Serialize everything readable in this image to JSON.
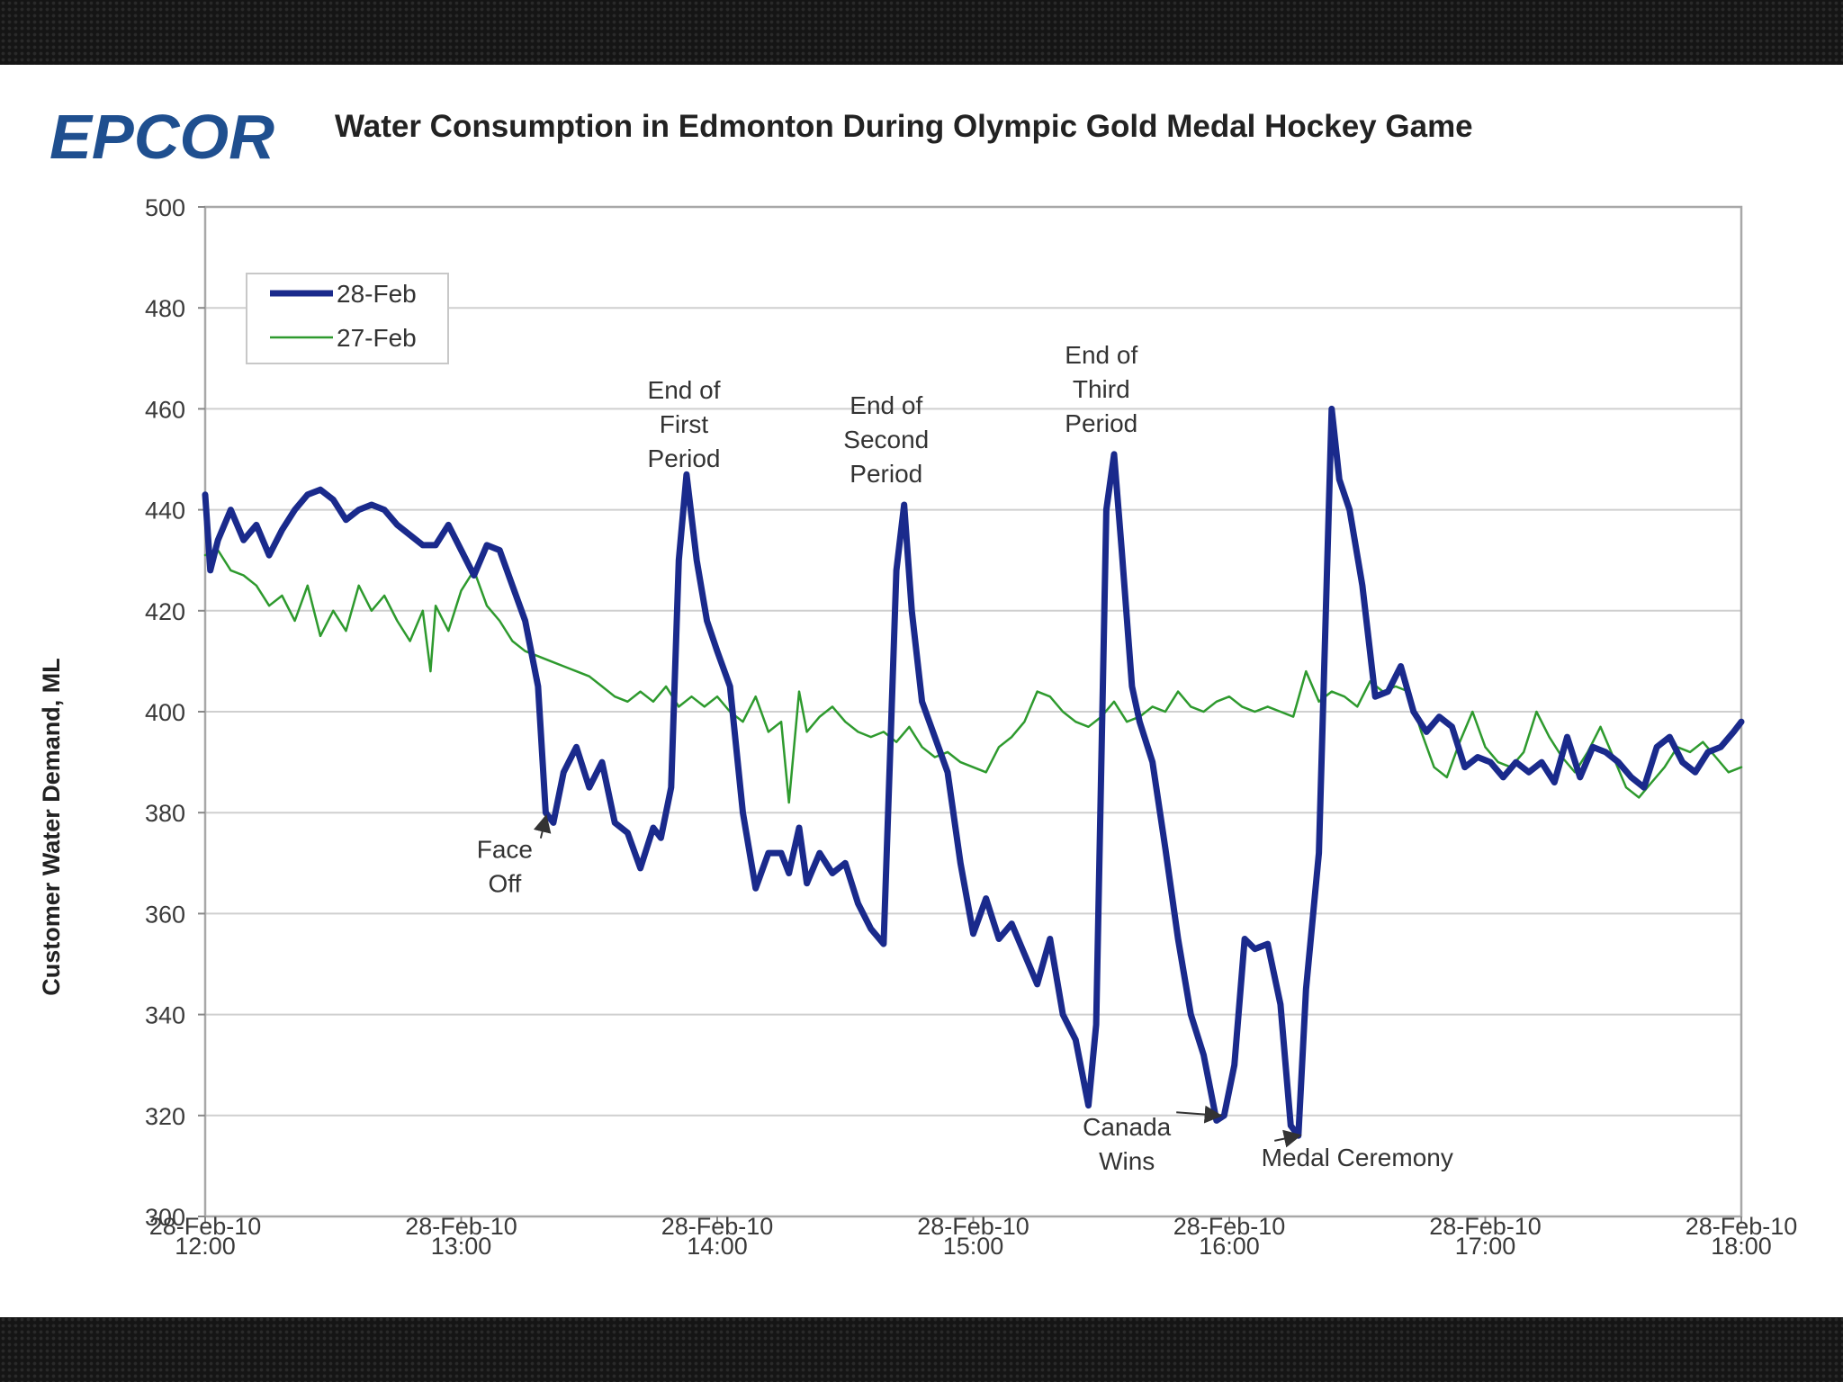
{
  "logo": {
    "text": "EPCOR"
  },
  "chart_data": {
    "type": "line",
    "title": "Water Consumption in Edmonton During Olympic Gold Medal Hockey Game",
    "xlabel": "",
    "ylabel": "Customer Water Demand, ML",
    "x_unit": "hours since 28-Feb-10 12:00",
    "xlim": [
      0,
      6
    ],
    "ylim": [
      300,
      500
    ],
    "yticks": [
      300,
      320,
      340,
      360,
      380,
      400,
      420,
      440,
      460,
      480,
      500
    ],
    "xticks": [
      {
        "x": 0,
        "line1": "28-Feb-10",
        "line2": "12:00"
      },
      {
        "x": 1,
        "line1": "28-Feb-10",
        "line2": "13:00"
      },
      {
        "x": 2,
        "line1": "28-Feb-10",
        "line2": "14:00"
      },
      {
        "x": 3,
        "line1": "28-Feb-10",
        "line2": "15:00"
      },
      {
        "x": 4,
        "line1": "28-Feb-10",
        "line2": "16:00"
      },
      {
        "x": 5,
        "line1": "28-Feb-10",
        "line2": "17:00"
      },
      {
        "x": 6,
        "line1": "28-Feb-10",
        "line2": "18:00"
      }
    ],
    "grid": true,
    "legend_position": "top-left",
    "series": [
      {
        "name": "28-Feb",
        "color": "#1a2a8c",
        "points": [
          [
            0,
            443
          ],
          [
            0.02,
            428
          ],
          [
            0.05,
            434
          ],
          [
            0.1,
            440
          ],
          [
            0.15,
            434
          ],
          [
            0.2,
            437
          ],
          [
            0.25,
            431
          ],
          [
            0.3,
            436
          ],
          [
            0.35,
            440
          ],
          [
            0.4,
            443
          ],
          [
            0.45,
            444
          ],
          [
            0.5,
            442
          ],
          [
            0.55,
            438
          ],
          [
            0.6,
            440
          ],
          [
            0.65,
            441
          ],
          [
            0.7,
            440
          ],
          [
            0.75,
            437
          ],
          [
            0.8,
            435
          ],
          [
            0.85,
            433
          ],
          [
            0.9,
            433
          ],
          [
            0.95,
            437
          ],
          [
            1.0,
            432
          ],
          [
            1.05,
            427
          ],
          [
            1.1,
            433
          ],
          [
            1.15,
            432
          ],
          [
            1.2,
            425
          ],
          [
            1.25,
            418
          ],
          [
            1.3,
            405
          ],
          [
            1.33,
            380
          ],
          [
            1.36,
            378
          ],
          [
            1.4,
            388
          ],
          [
            1.45,
            393
          ],
          [
            1.5,
            385
          ],
          [
            1.55,
            390
          ],
          [
            1.6,
            378
          ],
          [
            1.65,
            376
          ],
          [
            1.7,
            369
          ],
          [
            1.75,
            377
          ],
          [
            1.78,
            375
          ],
          [
            1.82,
            385
          ],
          [
            1.85,
            430
          ],
          [
            1.88,
            447
          ],
          [
            1.92,
            430
          ],
          [
            1.96,
            418
          ],
          [
            2.0,
            412
          ],
          [
            2.05,
            405
          ],
          [
            2.1,
            380
          ],
          [
            2.15,
            365
          ],
          [
            2.2,
            372
          ],
          [
            2.25,
            372
          ],
          [
            2.28,
            368
          ],
          [
            2.32,
            377
          ],
          [
            2.35,
            366
          ],
          [
            2.4,
            372
          ],
          [
            2.45,
            368
          ],
          [
            2.5,
            370
          ],
          [
            2.55,
            362
          ],
          [
            2.6,
            357
          ],
          [
            2.65,
            354
          ],
          [
            2.7,
            428
          ],
          [
            2.73,
            441
          ],
          [
            2.76,
            420
          ],
          [
            2.8,
            402
          ],
          [
            2.85,
            395
          ],
          [
            2.9,
            388
          ],
          [
            2.95,
            370
          ],
          [
            3.0,
            356
          ],
          [
            3.05,
            363
          ],
          [
            3.1,
            355
          ],
          [
            3.15,
            358
          ],
          [
            3.2,
            352
          ],
          [
            3.25,
            346
          ],
          [
            3.3,
            355
          ],
          [
            3.35,
            340
          ],
          [
            3.4,
            335
          ],
          [
            3.45,
            322
          ],
          [
            3.48,
            338
          ],
          [
            3.52,
            440
          ],
          [
            3.55,
            451
          ],
          [
            3.58,
            432
          ],
          [
            3.62,
            405
          ],
          [
            3.65,
            398
          ],
          [
            3.7,
            390
          ],
          [
            3.75,
            373
          ],
          [
            3.8,
            355
          ],
          [
            3.85,
            340
          ],
          [
            3.9,
            332
          ],
          [
            3.95,
            319
          ],
          [
            3.98,
            320
          ],
          [
            4.02,
            330
          ],
          [
            4.06,
            355
          ],
          [
            4.1,
            353
          ],
          [
            4.15,
            354
          ],
          [
            4.2,
            342
          ],
          [
            4.24,
            318
          ],
          [
            4.27,
            316
          ],
          [
            4.3,
            345
          ],
          [
            4.35,
            372
          ],
          [
            4.4,
            460
          ],
          [
            4.43,
            446
          ],
          [
            4.47,
            440
          ],
          [
            4.52,
            425
          ],
          [
            4.57,
            403
          ],
          [
            4.62,
            404
          ],
          [
            4.67,
            409
          ],
          [
            4.72,
            400
          ],
          [
            4.77,
            396
          ],
          [
            4.82,
            399
          ],
          [
            4.87,
            397
          ],
          [
            4.92,
            389
          ],
          [
            4.97,
            391
          ],
          [
            5.02,
            390
          ],
          [
            5.07,
            387
          ],
          [
            5.12,
            390
          ],
          [
            5.17,
            388
          ],
          [
            5.22,
            390
          ],
          [
            5.27,
            386
          ],
          [
            5.32,
            395
          ],
          [
            5.37,
            387
          ],
          [
            5.42,
            393
          ],
          [
            5.47,
            392
          ],
          [
            5.52,
            390
          ],
          [
            5.57,
            387
          ],
          [
            5.62,
            385
          ],
          [
            5.67,
            393
          ],
          [
            5.72,
            395
          ],
          [
            5.77,
            390
          ],
          [
            5.82,
            388
          ],
          [
            5.87,
            392
          ],
          [
            5.92,
            393
          ],
          [
            5.97,
            396
          ],
          [
            6.0,
            398
          ]
        ]
      },
      {
        "name": "27-Feb",
        "color": "#2e9a2e",
        "points": [
          [
            0,
            431
          ],
          [
            0.05,
            432
          ],
          [
            0.1,
            428
          ],
          [
            0.15,
            427
          ],
          [
            0.2,
            425
          ],
          [
            0.25,
            421
          ],
          [
            0.3,
            423
          ],
          [
            0.35,
            418
          ],
          [
            0.4,
            425
          ],
          [
            0.45,
            415
          ],
          [
            0.5,
            420
          ],
          [
            0.55,
            416
          ],
          [
            0.6,
            425
          ],
          [
            0.65,
            420
          ],
          [
            0.7,
            423
          ],
          [
            0.75,
            418
          ],
          [
            0.8,
            414
          ],
          [
            0.85,
            420
          ],
          [
            0.88,
            408
          ],
          [
            0.9,
            421
          ],
          [
            0.95,
            416
          ],
          [
            1.0,
            424
          ],
          [
            1.05,
            428
          ],
          [
            1.1,
            421
          ],
          [
            1.15,
            418
          ],
          [
            1.2,
            414
          ],
          [
            1.25,
            412
          ],
          [
            1.3,
            411
          ],
          [
            1.35,
            410
          ],
          [
            1.4,
            409
          ],
          [
            1.45,
            408
          ],
          [
            1.5,
            407
          ],
          [
            1.55,
            405
          ],
          [
            1.6,
            403
          ],
          [
            1.65,
            402
          ],
          [
            1.7,
            404
          ],
          [
            1.75,
            402
          ],
          [
            1.8,
            405
          ],
          [
            1.85,
            401
          ],
          [
            1.9,
            403
          ],
          [
            1.95,
            401
          ],
          [
            2.0,
            403
          ],
          [
            2.05,
            400
          ],
          [
            2.1,
            398
          ],
          [
            2.15,
            403
          ],
          [
            2.2,
            396
          ],
          [
            2.25,
            398
          ],
          [
            2.28,
            382
          ],
          [
            2.32,
            404
          ],
          [
            2.35,
            396
          ],
          [
            2.4,
            399
          ],
          [
            2.45,
            401
          ],
          [
            2.5,
            398
          ],
          [
            2.55,
            396
          ],
          [
            2.6,
            395
          ],
          [
            2.65,
            396
          ],
          [
            2.7,
            394
          ],
          [
            2.75,
            397
          ],
          [
            2.8,
            393
          ],
          [
            2.85,
            391
          ],
          [
            2.9,
            392
          ],
          [
            2.95,
            390
          ],
          [
            3.0,
            389
          ],
          [
            3.05,
            388
          ],
          [
            3.1,
            393
          ],
          [
            3.15,
            395
          ],
          [
            3.2,
            398
          ],
          [
            3.25,
            404
          ],
          [
            3.3,
            403
          ],
          [
            3.35,
            400
          ],
          [
            3.4,
            398
          ],
          [
            3.45,
            397
          ],
          [
            3.5,
            399
          ],
          [
            3.55,
            402
          ],
          [
            3.6,
            398
          ],
          [
            3.65,
            399
          ],
          [
            3.7,
            401
          ],
          [
            3.75,
            400
          ],
          [
            3.8,
            404
          ],
          [
            3.85,
            401
          ],
          [
            3.9,
            400
          ],
          [
            3.95,
            402
          ],
          [
            4.0,
            403
          ],
          [
            4.05,
            401
          ],
          [
            4.1,
            400
          ],
          [
            4.15,
            401
          ],
          [
            4.2,
            400
          ],
          [
            4.25,
            399
          ],
          [
            4.3,
            408
          ],
          [
            4.35,
            402
          ],
          [
            4.4,
            404
          ],
          [
            4.45,
            403
          ],
          [
            4.5,
            401
          ],
          [
            4.55,
            406
          ],
          [
            4.6,
            404
          ],
          [
            4.65,
            405
          ],
          [
            4.7,
            404
          ],
          [
            4.75,
            396
          ],
          [
            4.8,
            389
          ],
          [
            4.85,
            387
          ],
          [
            4.9,
            394
          ],
          [
            4.95,
            400
          ],
          [
            5.0,
            393
          ],
          [
            5.05,
            390
          ],
          [
            5.1,
            389
          ],
          [
            5.15,
            392
          ],
          [
            5.2,
            400
          ],
          [
            5.25,
            395
          ],
          [
            5.3,
            391
          ],
          [
            5.35,
            388
          ],
          [
            5.4,
            392
          ],
          [
            5.45,
            397
          ],
          [
            5.5,
            391
          ],
          [
            5.55,
            385
          ],
          [
            5.6,
            383
          ],
          [
            5.65,
            386
          ],
          [
            5.7,
            389
          ],
          [
            5.75,
            393
          ],
          [
            5.8,
            392
          ],
          [
            5.85,
            394
          ],
          [
            5.9,
            391
          ],
          [
            5.95,
            388
          ],
          [
            6.0,
            389
          ]
        ]
      }
    ],
    "annotations": [
      {
        "id": "face-off",
        "lines": [
          "Face",
          "Off"
        ],
        "x": 1.17,
        "y": 371,
        "arrow_to": [
          1.33,
          379
        ],
        "anchor": "middle"
      },
      {
        "id": "end-first",
        "lines": [
          "End of",
          "First",
          "Period"
        ],
        "x": 1.87,
        "y": 462,
        "arrow_to": null,
        "anchor": "middle"
      },
      {
        "id": "end-second",
        "lines": [
          "End of",
          "Second",
          "Period"
        ],
        "x": 2.66,
        "y": 459,
        "arrow_to": null,
        "anchor": "middle"
      },
      {
        "id": "end-third",
        "lines": [
          "End of",
          "Third",
          "Period"
        ],
        "x": 3.5,
        "y": 469,
        "arrow_to": null,
        "anchor": "middle"
      },
      {
        "id": "canada-wins",
        "lines": [
          "Canada",
          "Wins"
        ],
        "x": 3.6,
        "y": 316,
        "arrow_to": [
          3.96,
          320
        ],
        "anchor": "middle"
      },
      {
        "id": "medal-ceremony",
        "lines": [
          "Medal Ceremony"
        ],
        "x": 4.5,
        "y": 310,
        "arrow_to": [
          4.27,
          316
        ],
        "anchor": "middle",
        "small": true
      }
    ]
  }
}
